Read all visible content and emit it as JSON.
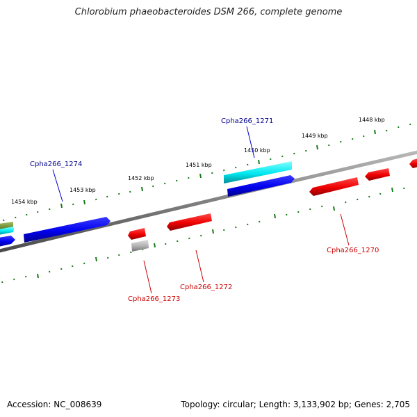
{
  "title": "Chlorobium phaeobacteroides DSM 266, complete genome",
  "footer": {
    "accession": "Accession: NC_008639",
    "topology": "Topology: circular; Length: 3,133,902 bp; Genes: 2,705"
  },
  "scale_labels": [
    "1454 kbp",
    "1453 kbp",
    "1452 kbp",
    "1451 kbp",
    "1450 kbp",
    "1449 kbp",
    "1448 kbp"
  ],
  "gene_labels": {
    "cpha266_1274": "Cpha266_1274",
    "cpha266_1271": "Cpha266_1271",
    "cpha266_1273": "Cpha266_1273",
    "cpha266_1272": "Cpha266_1272",
    "cpha266_1270": "Cpha266_1270"
  },
  "colors": {
    "forward_gene": "#0000ee",
    "forward_rna": "#00e5ee",
    "reverse_gene": "#ee0000",
    "pseudo_gene": "#b0b0b0",
    "other_gene": "#7a9a3a",
    "forward_label": "#00008b",
    "reverse_label": "#cc0000",
    "tick": "#1a7a1a",
    "backbone": "#808080"
  }
}
